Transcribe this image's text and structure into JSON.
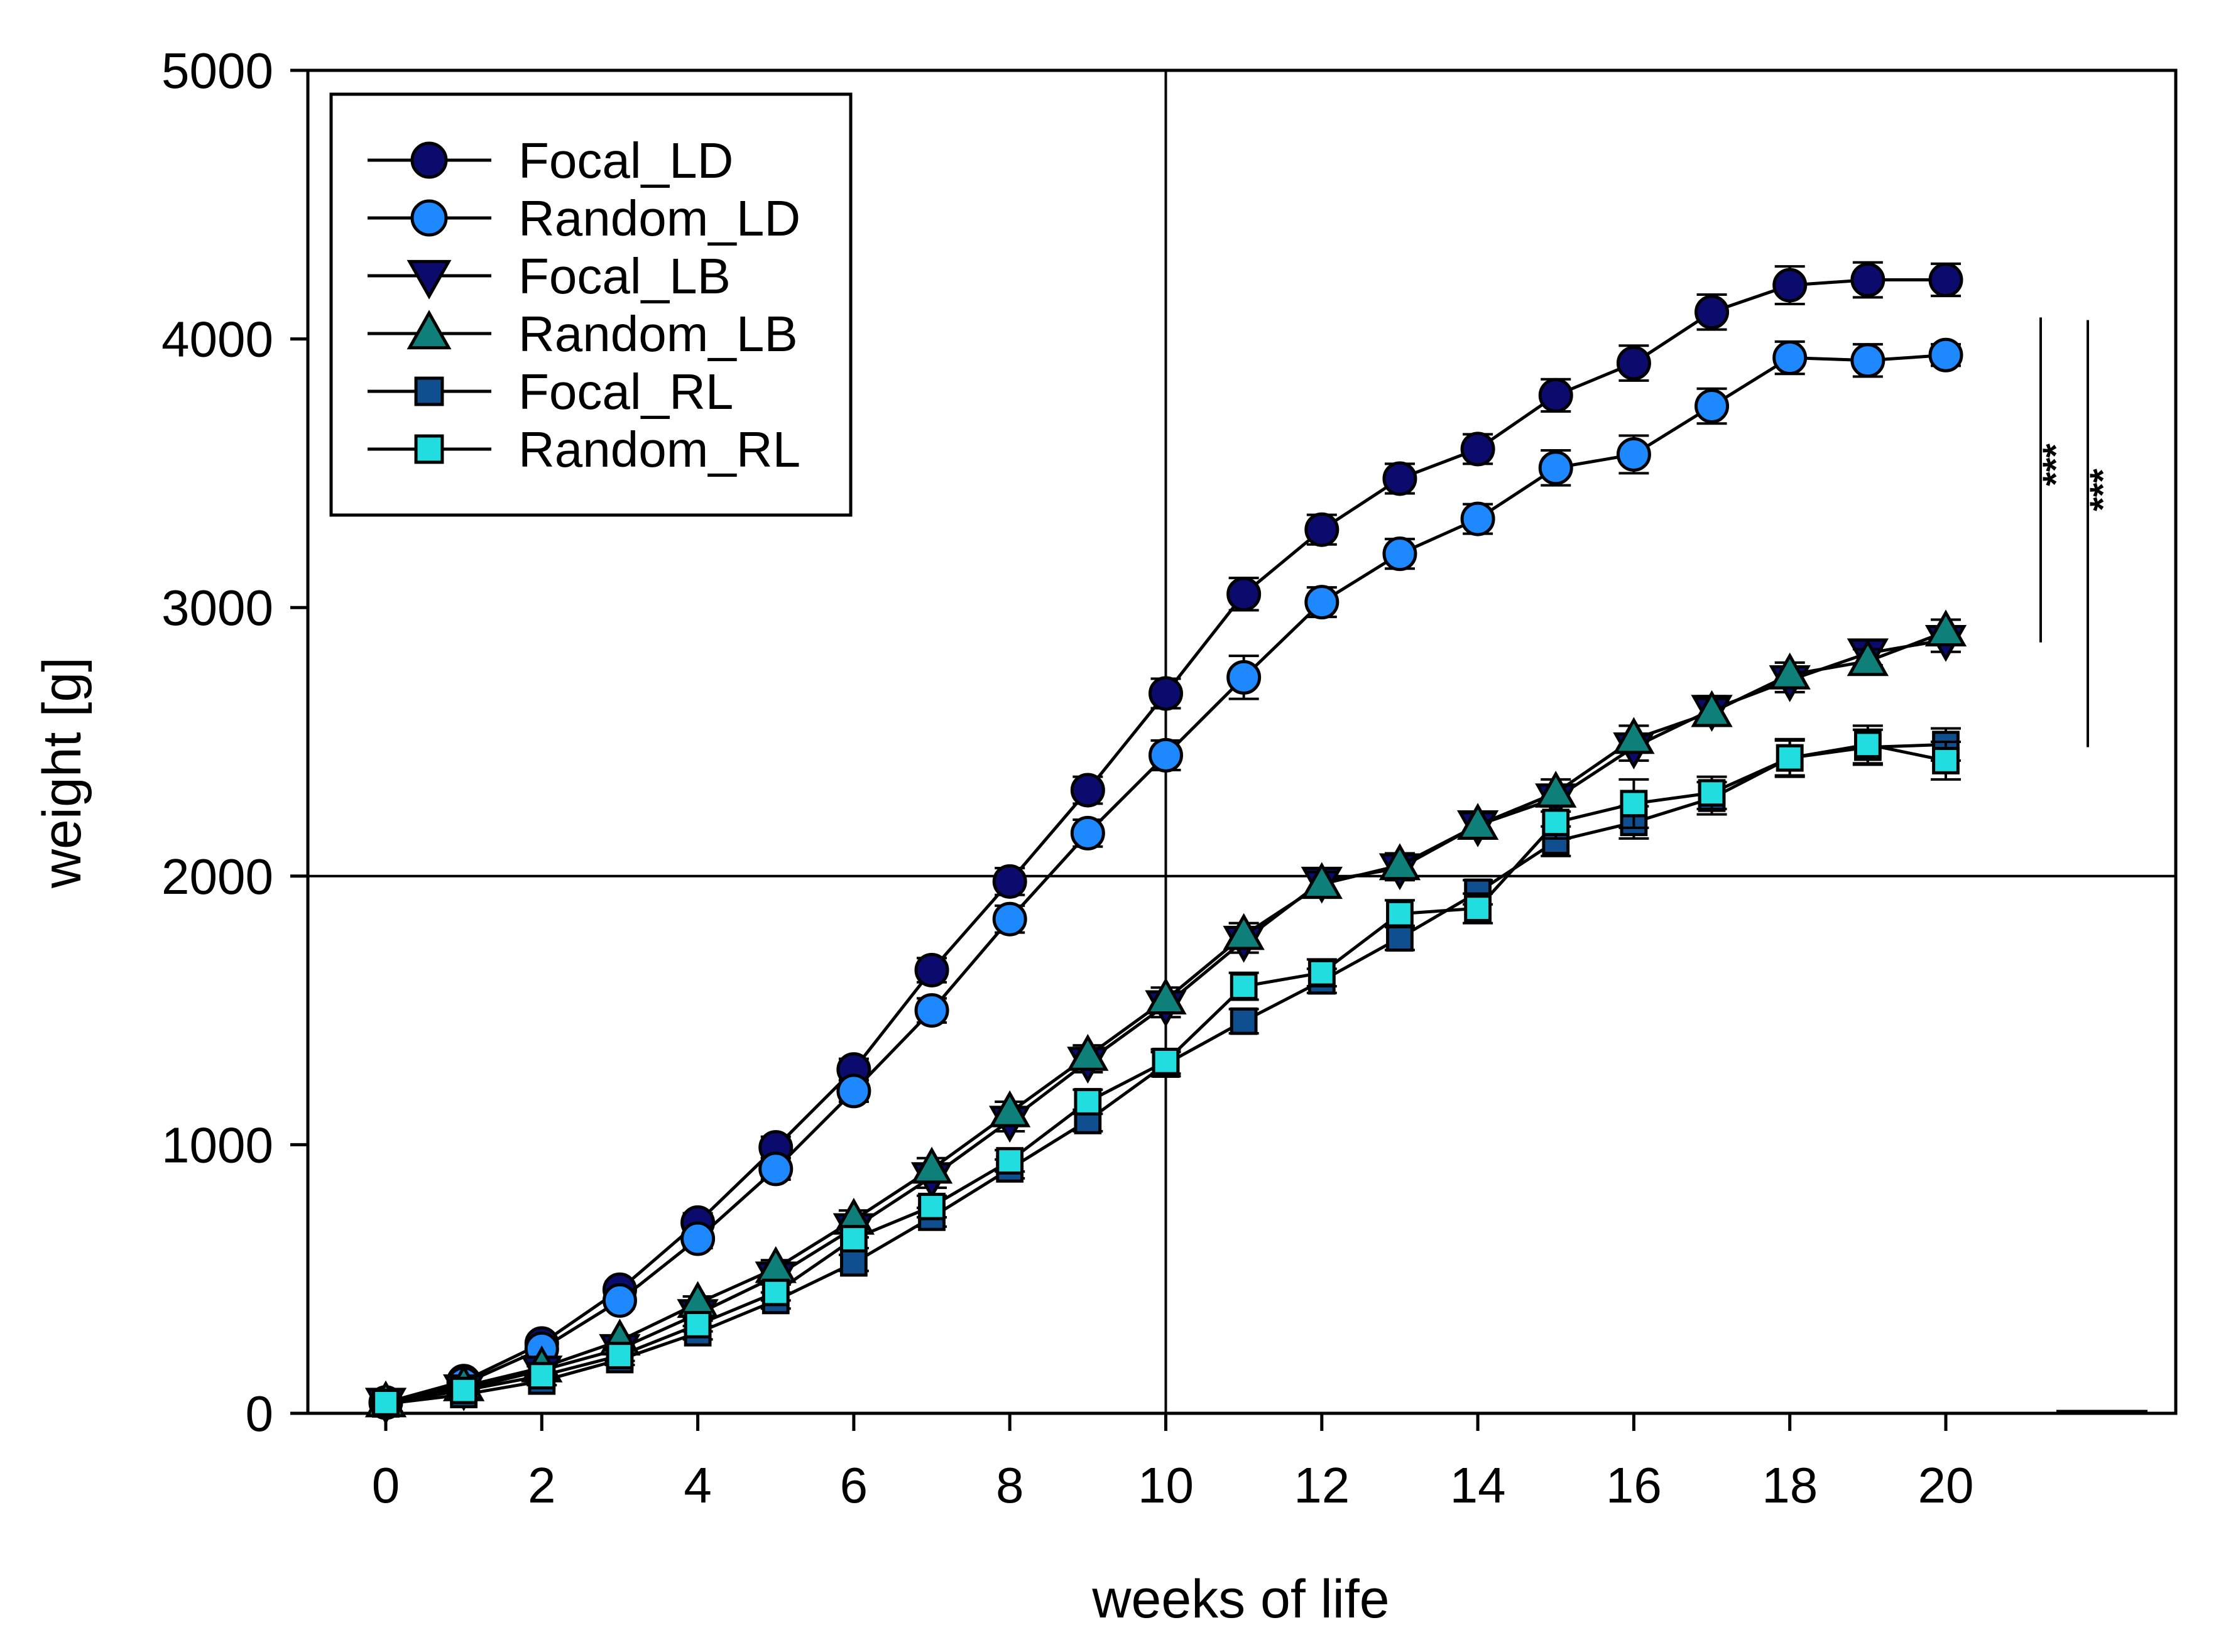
{
  "chart_data": {
    "type": "line",
    "title": "",
    "xlabel": "weeks of life",
    "ylabel": "weight [g]",
    "xlim": [
      -1,
      23
    ],
    "ylim": [
      0,
      5000
    ],
    "xticks": [
      0,
      2,
      4,
      6,
      8,
      10,
      12,
      14,
      16,
      18,
      20
    ],
    "yticks": [
      0,
      1000,
      2000,
      3000,
      4000,
      5000
    ],
    "reference_lines": {
      "x": 10,
      "y": 2000
    },
    "legend_position": "top-left",
    "x": [
      0,
      1,
      2,
      3,
      4,
      5,
      6,
      7,
      8,
      9,
      10,
      11,
      12,
      13,
      14,
      15,
      16,
      17,
      18,
      19,
      20
    ],
    "series": [
      {
        "name": "Focal_LD",
        "marker": "circle",
        "color": "#0b0b6e",
        "values": [
          40,
          120,
          260,
          460,
          710,
          990,
          1280,
          1650,
          1980,
          2320,
          2680,
          3050,
          3290,
          3480,
          3590,
          3790,
          3910,
          4100,
          4200,
          4220,
          4220
        ],
        "errors": [
          10,
          15,
          25,
          30,
          35,
          40,
          40,
          45,
          50,
          50,
          55,
          60,
          55,
          55,
          55,
          60,
          65,
          65,
          70,
          65,
          60
        ]
      },
      {
        "name": "Random_LD",
        "marker": "circle",
        "color": "#1e88ff",
        "values": [
          40,
          110,
          240,
          420,
          650,
          910,
          1200,
          1500,
          1840,
          2160,
          2450,
          2740,
          3020,
          3200,
          3330,
          3520,
          3570,
          3750,
          3930,
          3920,
          3940
        ],
        "errors": [
          10,
          15,
          25,
          30,
          35,
          40,
          40,
          45,
          50,
          50,
          55,
          80,
          55,
          55,
          55,
          65,
          70,
          65,
          60,
          60,
          40
        ]
      },
      {
        "name": "Focal_LB",
        "marker": "triangle-down",
        "color": "#0b0b6e",
        "values": [
          40,
          90,
          160,
          240,
          370,
          510,
          690,
          880,
          1090,
          1310,
          1520,
          1760,
          1980,
          2030,
          2190,
          2290,
          2480,
          2620,
          2730,
          2830,
          2880
        ],
        "errors": [
          8,
          12,
          15,
          20,
          25,
          30,
          35,
          40,
          40,
          40,
          45,
          45,
          45,
          45,
          45,
          50,
          50,
          50,
          45,
          45,
          45
        ]
      },
      {
        "name": "Random_LB",
        "marker": "triangle-up",
        "color": "#0f7f7a",
        "values": [
          40,
          100,
          170,
          270,
          410,
          540,
          720,
          910,
          1120,
          1330,
          1540,
          1780,
          1970,
          2040,
          2190,
          2310,
          2510,
          2610,
          2750,
          2800,
          2910
        ],
        "errors": [
          8,
          12,
          15,
          20,
          25,
          30,
          35,
          40,
          40,
          40,
          45,
          45,
          45,
          45,
          45,
          50,
          50,
          50,
          45,
          45,
          45
        ]
      },
      {
        "name": "Focal_RL",
        "marker": "square",
        "color": "#0f4f8f",
        "values": [
          35,
          70,
          120,
          200,
          300,
          420,
          560,
          730,
          910,
          1090,
          1300,
          1460,
          1610,
          1770,
          1940,
          2130,
          2200,
          2290,
          2440,
          2480,
          2490
        ],
        "errors": [
          8,
          12,
          15,
          20,
          25,
          30,
          30,
          35,
          35,
          40,
          45,
          45,
          45,
          45,
          45,
          55,
          60,
          60,
          65,
          65,
          60
        ]
      },
      {
        "name": "Random_RL",
        "marker": "square",
        "color": "#22dde0",
        "values": [
          40,
          85,
          140,
          215,
          330,
          450,
          650,
          770,
          940,
          1160,
          1310,
          1590,
          1640,
          1860,
          1880,
          2200,
          2270,
          2310,
          2440,
          2490,
          2430
        ],
        "errors": [
          8,
          12,
          15,
          20,
          25,
          30,
          35,
          40,
          40,
          45,
          45,
          50,
          50,
          50,
          55,
          60,
          90,
          60,
          70,
          70,
          70
        ]
      }
    ],
    "significance": [
      {
        "label": "***",
        "from": 2870,
        "to": 4080
      },
      {
        "label": "***",
        "from": 2480,
        "to": 4070
      }
    ]
  }
}
